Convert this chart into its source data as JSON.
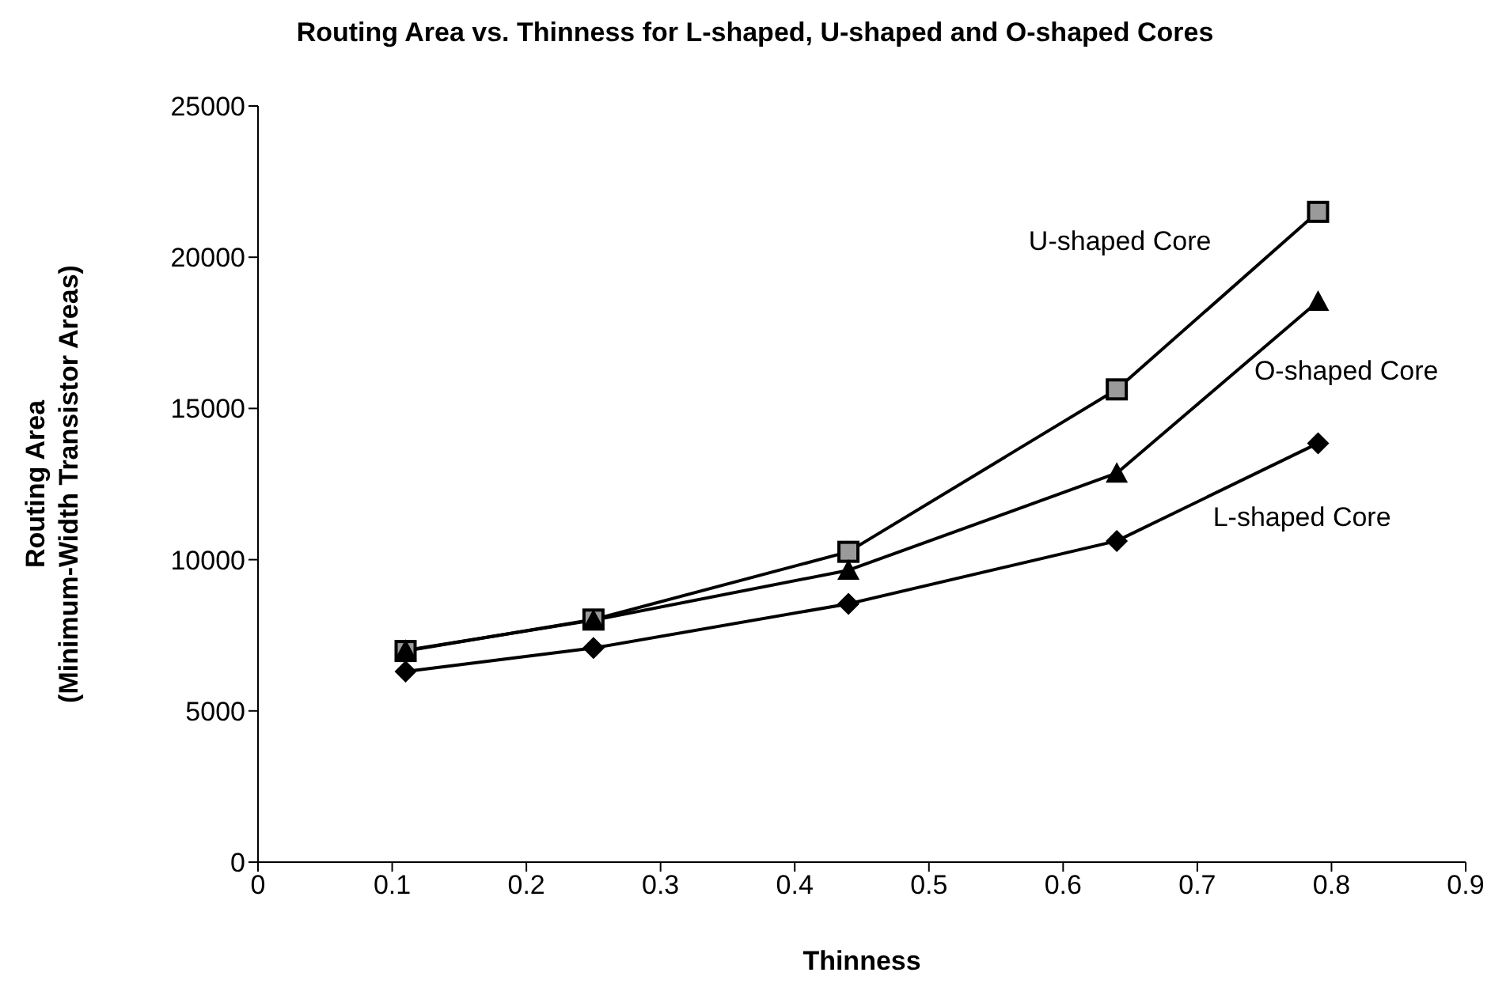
{
  "chart_data": {
    "type": "line",
    "title": "Routing Area vs. Thinness for L-shaped, U-shaped and O-shaped Cores",
    "xlabel": "Thinness",
    "ylabel": "Routing Area\n(Minimum-Width Transistor Areas)",
    "x": [
      0.11,
      0.25,
      0.44,
      0.64,
      0.79
    ],
    "series": [
      {
        "name": "U-shaped Core",
        "color": "#000000",
        "marker": "square",
        "values": [
          6980,
          8020,
          10260,
          15630,
          21500
        ]
      },
      {
        "name": "O-shaped Core",
        "color": "#000000",
        "marker": "triangle",
        "values": [
          7000,
          8000,
          9650,
          12860,
          18540
        ]
      },
      {
        "name": "L-shaped Core",
        "color": "#000000",
        "marker": "diamond",
        "values": [
          6300,
          7080,
          8540,
          10620,
          13850
        ]
      }
    ],
    "xlim": [
      0,
      0.9
    ],
    "xticks": [
      0,
      0.1,
      0.2,
      0.3,
      0.4,
      0.5,
      0.6,
      0.7,
      0.8,
      0.9
    ],
    "ylim": [
      0,
      25000
    ],
    "yticks": [
      0,
      5000,
      10000,
      15000,
      20000,
      25000
    ],
    "grid": false,
    "legend": false,
    "line_style": "solid"
  }
}
